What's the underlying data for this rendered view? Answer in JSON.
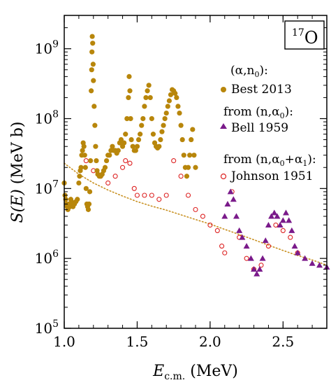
{
  "chart_data": {
    "type": "scatter",
    "x_axis": {
      "label_main": "E",
      "label_sub": "c.m.",
      "label_unit": " (MeV)",
      "range": [
        1.0,
        2.8
      ],
      "ticks": [
        1.0,
        1.5,
        2.0,
        2.5
      ],
      "tick_labels": [
        "1.0",
        "1.5",
        "2.0",
        "2.5"
      ],
      "minor_step": 0.1
    },
    "y_axis": {
      "label_main": "S(E)",
      "label_unit": " (MeV b)",
      "scale": "log",
      "range": [
        100000,
        3000000000
      ],
      "ticks": [
        100000,
        1000000,
        10000000,
        100000000,
        1000000000
      ],
      "tick_base": [
        "10",
        "10",
        "10",
        "10",
        "10"
      ],
      "tick_exp": [
        "5",
        "6",
        "7",
        "8",
        "9"
      ]
    },
    "nucleus_label": {
      "mass": "17",
      "symbol": "O"
    },
    "legend_headers": {
      "best": "(α,n0):",
      "bell": "from (n,α0):",
      "johnson": "from (n,α0+α1):"
    },
    "colors": {
      "best": "#b8860b",
      "bell": "#7a1a8a",
      "johnson": "#dd2222",
      "trend": "#c89020"
    },
    "series": [
      {
        "name": "Best 2013",
        "marker": "filled-circle",
        "points": [
          [
            1.0,
            12000000.0
          ],
          [
            1.005,
            8000000.0
          ],
          [
            1.01,
            7000000.0
          ],
          [
            1.015,
            6000000.0
          ],
          [
            1.02,
            5500000.0
          ],
          [
            1.025,
            5000000.0
          ],
          [
            1.03,
            6000000.0
          ],
          [
            1.035,
            5500000.0
          ],
          [
            1.04,
            5500000.0
          ],
          [
            1.045,
            7000000.0
          ],
          [
            1.05,
            6500000.0
          ],
          [
            1.055,
            6000000.0
          ],
          [
            1.06,
            5500000.0
          ],
          [
            1.065,
            6000000.0
          ],
          [
            1.07,
            6000000.0
          ],
          [
            1.08,
            6500000.0
          ],
          [
            1.09,
            7000000.0
          ],
          [
            1.1,
            12000000.0
          ],
          [
            1.105,
            15000000.0
          ],
          [
            1.11,
            18000000.0
          ],
          [
            1.115,
            20000000.0
          ],
          [
            1.12,
            30000000.0
          ],
          [
            1.125,
            35000000.0
          ],
          [
            1.13,
            45000000.0
          ],
          [
            1.135,
            40000000.0
          ],
          [
            1.14,
            30000000.0
          ],
          [
            1.145,
            20000000.0
          ],
          [
            1.15,
            10000000.0
          ],
          [
            1.155,
            6000000.0
          ],
          [
            1.16,
            5500000.0
          ],
          [
            1.165,
            5000000.0
          ],
          [
            1.17,
            6000000.0
          ],
          [
            1.175,
            9000000.0
          ],
          [
            1.18,
            25000000.0
          ],
          [
            1.185,
            250000000.0
          ],
          [
            1.188,
            500000000.0
          ],
          [
            1.19,
            900000000.0
          ],
          [
            1.192,
            1500000000.0
          ],
          [
            1.195,
            1200000000.0
          ],
          [
            1.198,
            600000000.0
          ],
          [
            1.2,
            350000000.0
          ],
          [
            1.205,
            150000000.0
          ],
          [
            1.21,
            80000000.0
          ],
          [
            1.215,
            40000000.0
          ],
          [
            1.22,
            25000000.0
          ],
          [
            1.225,
            18000000.0
          ],
          [
            1.23,
            16000000.0
          ],
          [
            1.24,
            15000000.0
          ],
          [
            1.25,
            15000000.0
          ],
          [
            1.26,
            16000000.0
          ],
          [
            1.27,
            18000000.0
          ],
          [
            1.28,
            20000000.0
          ],
          [
            1.29,
            25000000.0
          ],
          [
            1.3,
            30000000.0
          ],
          [
            1.31,
            30000000.0
          ],
          [
            1.32,
            35000000.0
          ],
          [
            1.33,
            40000000.0
          ],
          [
            1.34,
            35000000.0
          ],
          [
            1.35,
            35000000.0
          ],
          [
            1.36,
            32000000.0
          ],
          [
            1.37,
            35000000.0
          ],
          [
            1.38,
            45000000.0
          ],
          [
            1.39,
            50000000.0
          ],
          [
            1.4,
            40000000.0
          ],
          [
            1.41,
            45000000.0
          ],
          [
            1.42,
            60000000.0
          ],
          [
            1.43,
            100000000.0
          ],
          [
            1.44,
            200000000.0
          ],
          [
            1.445,
            400000000.0
          ],
          [
            1.45,
            250000000.0
          ],
          [
            1.455,
            100000000.0
          ],
          [
            1.46,
            50000000.0
          ],
          [
            1.47,
            40000000.0
          ],
          [
            1.48,
            35000000.0
          ],
          [
            1.49,
            35000000.0
          ],
          [
            1.5,
            40000000.0
          ],
          [
            1.51,
            50000000.0
          ],
          [
            1.52,
            60000000.0
          ],
          [
            1.53,
            80000000.0
          ],
          [
            1.54,
            100000000.0
          ],
          [
            1.55,
            150000000.0
          ],
          [
            1.56,
            200000000.0
          ],
          [
            1.57,
            250000000.0
          ],
          [
            1.58,
            300000000.0
          ],
          [
            1.59,
            200000000.0
          ],
          [
            1.6,
            100000000.0
          ],
          [
            1.61,
            60000000.0
          ],
          [
            1.62,
            45000000.0
          ],
          [
            1.63,
            40000000.0
          ],
          [
            1.64,
            38000000.0
          ],
          [
            1.65,
            40000000.0
          ],
          [
            1.66,
            50000000.0
          ],
          [
            1.67,
            65000000.0
          ],
          [
            1.68,
            80000000.0
          ],
          [
            1.69,
            100000000.0
          ],
          [
            1.7,
            120000000.0
          ],
          [
            1.71,
            150000000.0
          ],
          [
            1.72,
            180000000.0
          ],
          [
            1.73,
            220000000.0
          ],
          [
            1.74,
            260000000.0
          ],
          [
            1.75,
            250000000.0
          ],
          [
            1.76,
            230000000.0
          ],
          [
            1.77,
            200000000.0
          ],
          [
            1.78,
            150000000.0
          ],
          [
            1.79,
            120000000.0
          ],
          [
            1.8,
            80000000.0
          ],
          [
            1.81,
            50000000.0
          ],
          [
            1.82,
            30000000.0
          ],
          [
            1.83,
            20000000.0
          ],
          [
            1.84,
            15000000.0
          ],
          [
            1.85,
            20000000.0
          ],
          [
            1.86,
            30000000.0
          ],
          [
            1.87,
            50000000.0
          ],
          [
            1.88,
            70000000.0
          ],
          [
            1.89,
            30000000.0
          ],
          [
            1.9,
            20000000.0
          ]
        ]
      },
      {
        "name": "Bell 1959",
        "marker": "filled-triangle",
        "points": [
          [
            2.1,
            4000000.0
          ],
          [
            2.12,
            6000000.0
          ],
          [
            2.14,
            9000000.0
          ],
          [
            2.16,
            7000000.0
          ],
          [
            2.18,
            4000000.0
          ],
          [
            2.2,
            2500000.0
          ],
          [
            2.22,
            2000000.0
          ],
          [
            2.25,
            1500000.0
          ],
          [
            2.28,
            1000000.0
          ],
          [
            2.3,
            700000.0
          ],
          [
            2.32,
            600000.0
          ],
          [
            2.34,
            700000.0
          ],
          [
            2.36,
            1000000.0
          ],
          [
            2.38,
            1800000.0
          ],
          [
            2.4,
            3000000.0
          ],
          [
            2.42,
            4000000.0
          ],
          [
            2.44,
            4500000.0
          ],
          [
            2.46,
            4000000.0
          ],
          [
            2.48,
            3000000.0
          ],
          [
            2.5,
            3500000.0
          ],
          [
            2.52,
            4500000.0
          ],
          [
            2.54,
            3500000.0
          ],
          [
            2.56,
            2500000.0
          ],
          [
            2.58,
            1500000.0
          ],
          [
            2.6,
            1200000.0
          ],
          [
            2.65,
            1000000.0
          ],
          [
            2.7,
            850000.0
          ],
          [
            2.75,
            800000.0
          ],
          [
            2.8,
            750000.0
          ]
        ]
      },
      {
        "name": "Johnson 1951",
        "marker": "open-circle",
        "points": [
          [
            1.15,
            25000000.0
          ],
          [
            1.2,
            18000000.0
          ],
          [
            1.25,
            15000000.0
          ],
          [
            1.3,
            12000000.0
          ],
          [
            1.35,
            15000000.0
          ],
          [
            1.4,
            20000000.0
          ],
          [
            1.42,
            25000000.0
          ],
          [
            1.45,
            23000000.0
          ],
          [
            1.48,
            10000000.0
          ],
          [
            1.5,
            8000000.0
          ],
          [
            1.55,
            8000000.0
          ],
          [
            1.6,
            8000000.0
          ],
          [
            1.65,
            7000000.0
          ],
          [
            1.7,
            8000000.0
          ],
          [
            1.75,
            25000000.0
          ],
          [
            1.8,
            15000000.0
          ],
          [
            1.85,
            8000000.0
          ],
          [
            1.9,
            5000000.0
          ],
          [
            1.95,
            4000000.0
          ],
          [
            2.0,
            3000000.0
          ],
          [
            2.05,
            2500000.0
          ],
          [
            2.08,
            1500000.0
          ],
          [
            2.1,
            1200000.0
          ],
          [
            2.15,
            9000000.0
          ],
          [
            2.2,
            2000000.0
          ],
          [
            2.25,
            1000000.0
          ],
          [
            2.3,
            700000.0
          ],
          [
            2.35,
            800000.0
          ],
          [
            2.4,
            1500000.0
          ],
          [
            2.45,
            3000000.0
          ],
          [
            2.5,
            2500000.0
          ],
          [
            2.55,
            2000000.0
          ],
          [
            2.6,
            1200000.0
          ]
        ]
      }
    ],
    "trend_line": {
      "style": "dotted",
      "points": [
        [
          1.0,
          23000000.0
        ],
        [
          1.1,
          16000000.0
        ],
        [
          1.2,
          12000000.0
        ],
        [
          1.3,
          9500000.0
        ],
        [
          1.4,
          7800000.0
        ],
        [
          1.5,
          6500000.0
        ],
        [
          1.6,
          5600000.0
        ],
        [
          1.7,
          4900000.0
        ],
        [
          1.8,
          4200000.0
        ],
        [
          1.9,
          3600000.0
        ],
        [
          2.0,
          3100000.0
        ],
        [
          2.1,
          2600000.0
        ],
        [
          2.2,
          2200000.0
        ],
        [
          2.3,
          1850000.0
        ],
        [
          2.4,
          1550000.0
        ],
        [
          2.5,
          1300000.0
        ],
        [
          2.6,
          1100000.0
        ],
        [
          2.7,
          950000.0
        ],
        [
          2.8,
          800000.0
        ]
      ]
    }
  }
}
